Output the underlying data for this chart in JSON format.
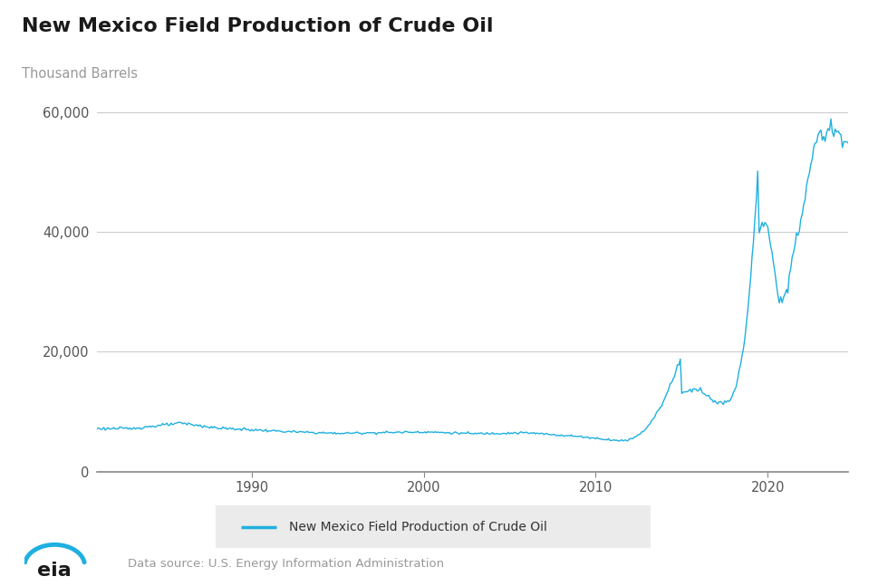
{
  "title": "New Mexico Field Production of Crude Oil",
  "ylabel": "Thousand Barrels",
  "line_color": "#1eb0e0",
  "line_width": 1.0,
  "background_color": "#ffffff",
  "grid_color": "#cccccc",
  "legend_label": "New Mexico Field Production of Crude Oil",
  "source_text": "Data source: U.S. Energy Information Administration",
  "yticks": [
    0,
    20000,
    40000,
    60000
  ],
  "ylim": [
    0,
    65000
  ],
  "title_fontsize": 16,
  "ylabel_fontsize": 10.5,
  "tick_fontsize": 10.5,
  "xtick_years": [
    1990,
    2000,
    2010,
    2020
  ],
  "legend_bg": "#ebebeb"
}
